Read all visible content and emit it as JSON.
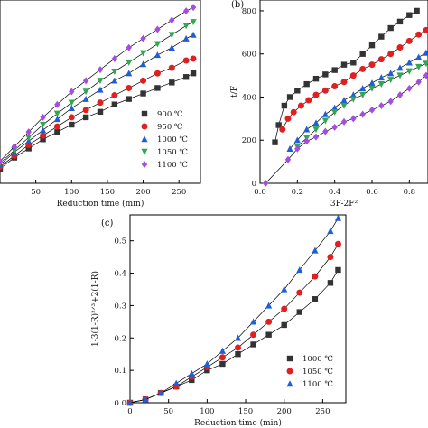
{
  "chart_data": [
    {
      "type": "scatter",
      "panel_label": "",
      "xlabel": "Reduction time (min)",
      "ylabel": "",
      "xlim": [
        0,
        280
      ],
      "ylim": [
        0,
        1
      ],
      "grid": false,
      "legend_position": "bottom-right",
      "x_ticks": [
        "50",
        "100",
        "150",
        "200",
        "250"
      ],
      "x_tick_values": [
        50,
        100,
        150,
        200,
        250
      ],
      "series": [
        {
          "name": "900 ℃",
          "marker": "square",
          "color": "#333333",
          "x": [
            0,
            20,
            40,
            60,
            80,
            100,
            120,
            140,
            160,
            180,
            200,
            220,
            240,
            260,
            270
          ],
          "y": [
            0.08,
            0.14,
            0.19,
            0.24,
            0.28,
            0.32,
            0.36,
            0.39,
            0.43,
            0.46,
            0.49,
            0.52,
            0.55,
            0.58,
            0.6
          ]
        },
        {
          "name": "950 ℃",
          "marker": "circle",
          "color": "#e02020",
          "x": [
            0,
            20,
            40,
            60,
            80,
            100,
            120,
            140,
            160,
            180,
            200,
            220,
            240,
            260,
            270
          ],
          "y": [
            0.09,
            0.15,
            0.21,
            0.26,
            0.31,
            0.36,
            0.4,
            0.44,
            0.48,
            0.52,
            0.56,
            0.6,
            0.63,
            0.67,
            0.68
          ]
        },
        {
          "name": "1000 ℃",
          "marker": "triangle-up",
          "color": "#1f5fd6",
          "x": [
            0,
            20,
            40,
            60,
            80,
            100,
            120,
            140,
            160,
            180,
            200,
            220,
            240,
            260,
            270
          ],
          "y": [
            0.1,
            0.17,
            0.23,
            0.29,
            0.35,
            0.41,
            0.46,
            0.51,
            0.56,
            0.6,
            0.65,
            0.7,
            0.74,
            0.79,
            0.81
          ]
        },
        {
          "name": "1050 ℃",
          "marker": "triangle-down",
          "color": "#2fa84f",
          "x": [
            0,
            20,
            40,
            60,
            80,
            100,
            120,
            140,
            160,
            180,
            200,
            220,
            240,
            260,
            270
          ],
          "y": [
            0.11,
            0.18,
            0.25,
            0.32,
            0.38,
            0.44,
            0.5,
            0.56,
            0.61,
            0.66,
            0.71,
            0.76,
            0.81,
            0.86,
            0.88
          ]
        },
        {
          "name": "1100 ℃",
          "marker": "diamond",
          "color": "#a64ce0",
          "x": [
            0,
            20,
            40,
            60,
            80,
            100,
            120,
            140,
            160,
            180,
            200,
            220,
            240,
            260,
            270
          ],
          "y": [
            0.12,
            0.2,
            0.28,
            0.36,
            0.43,
            0.5,
            0.56,
            0.62,
            0.68,
            0.74,
            0.79,
            0.84,
            0.89,
            0.94,
            0.96
          ]
        }
      ]
    },
    {
      "type": "scatter",
      "panel_label": "(b)",
      "xlabel": "3F-2F²",
      "ylabel": "t/F",
      "xlim": [
        0,
        0.9
      ],
      "ylim": [
        0,
        850
      ],
      "grid": false,
      "x_ticks": [
        "0.0",
        "0.2",
        "0.4",
        "0.6",
        "0.8"
      ],
      "x_tick_values": [
        0,
        0.2,
        0.4,
        0.6,
        0.8
      ],
      "y_ticks": [
        "0",
        "200",
        "400",
        "600",
        "800"
      ],
      "y_tick_values": [
        0,
        200,
        400,
        600,
        800
      ],
      "series": [
        {
          "marker": "square",
          "color": "#333333",
          "x": [
            0.08,
            0.1,
            0.13,
            0.16,
            0.2,
            0.25,
            0.3,
            0.35,
            0.4,
            0.45,
            0.5,
            0.55,
            0.6,
            0.65,
            0.7,
            0.75,
            0.8,
            0.84
          ],
          "y": [
            190,
            270,
            360,
            400,
            430,
            460,
            485,
            505,
            525,
            550,
            560,
            600,
            640,
            680,
            720,
            750,
            780,
            800
          ]
        },
        {
          "marker": "circle",
          "color": "#e02020",
          "x": [
            0.12,
            0.15,
            0.18,
            0.22,
            0.26,
            0.3,
            0.35,
            0.4,
            0.45,
            0.5,
            0.55,
            0.6,
            0.65,
            0.7,
            0.75,
            0.8,
            0.85,
            0.89
          ],
          "y": [
            250,
            300,
            330,
            360,
            385,
            410,
            430,
            450,
            470,
            500,
            530,
            550,
            575,
            600,
            630,
            660,
            690,
            710
          ]
        },
        {
          "marker": "triangle-up",
          "color": "#1f5fd6",
          "x": [
            0.16,
            0.2,
            0.25,
            0.3,
            0.35,
            0.4,
            0.45,
            0.5,
            0.55,
            0.6,
            0.65,
            0.7,
            0.75,
            0.8,
            0.85,
            0.89
          ],
          "y": [
            160,
            200,
            250,
            280,
            320,
            350,
            385,
            410,
            440,
            465,
            490,
            510,
            535,
            560,
            585,
            605
          ]
        },
        {
          "marker": "triangle-down",
          "color": "#2fa84f",
          "x": [
            0.2,
            0.25,
            0.3,
            0.35,
            0.4,
            0.45,
            0.5,
            0.55,
            0.6,
            0.65,
            0.7,
            0.75,
            0.8,
            0.85,
            0.89
          ],
          "y": [
            170,
            210,
            250,
            290,
            330,
            360,
            390,
            410,
            440,
            460,
            480,
            500,
            520,
            540,
            555
          ]
        },
        {
          "marker": "diamond",
          "color": "#a64ce0",
          "x": [
            0.03,
            0.15,
            0.2,
            0.25,
            0.3,
            0.35,
            0.4,
            0.45,
            0.5,
            0.55,
            0.6,
            0.65,
            0.7,
            0.75,
            0.8,
            0.85,
            0.89
          ],
          "y": [
            0,
            110,
            160,
            195,
            215,
            240,
            260,
            285,
            300,
            320,
            340,
            360,
            380,
            410,
            440,
            470,
            500
          ]
        }
      ]
    },
    {
      "type": "scatter",
      "panel_label": "(c)",
      "xlabel": "Reduction time (min)",
      "ylabel": "1-3(1-R)²ᐟ³+2(1-R)",
      "xlim": [
        0,
        280
      ],
      "ylim": [
        0,
        0.58
      ],
      "grid": false,
      "legend_position": "bottom-right",
      "x_ticks": [
        "0",
        "50",
        "100",
        "150",
        "200",
        "250"
      ],
      "x_tick_values": [
        0,
        50,
        100,
        150,
        200,
        250
      ],
      "y_ticks": [
        "0.0",
        "0.1",
        "0.2",
        "0.3",
        "0.4",
        "0.5"
      ],
      "y_tick_values": [
        0,
        0.1,
        0.2,
        0.3,
        0.4,
        0.5
      ],
      "series": [
        {
          "name": "1000 ℃",
          "marker": "square",
          "color": "#333333",
          "x": [
            0,
            20,
            40,
            60,
            80,
            100,
            120,
            140,
            160,
            180,
            200,
            220,
            240,
            260,
            270
          ],
          "y": [
            0.0,
            0.01,
            0.03,
            0.05,
            0.07,
            0.1,
            0.12,
            0.15,
            0.18,
            0.21,
            0.24,
            0.28,
            0.32,
            0.37,
            0.41
          ]
        },
        {
          "name": "1050 ℃",
          "marker": "circle",
          "color": "#e02020",
          "x": [
            0,
            20,
            40,
            60,
            80,
            100,
            120,
            140,
            160,
            180,
            200,
            220,
            240,
            260,
            270
          ],
          "y": [
            0.0,
            0.01,
            0.03,
            0.05,
            0.08,
            0.11,
            0.14,
            0.17,
            0.21,
            0.25,
            0.29,
            0.34,
            0.39,
            0.45,
            0.49
          ]
        },
        {
          "name": "1100 ℃",
          "marker": "triangle-up",
          "color": "#1f5fd6",
          "x": [
            0,
            20,
            40,
            60,
            80,
            100,
            120,
            140,
            160,
            180,
            200,
            220,
            240,
            260,
            270
          ],
          "y": [
            0.0,
            0.01,
            0.03,
            0.06,
            0.09,
            0.12,
            0.16,
            0.2,
            0.25,
            0.3,
            0.35,
            0.41,
            0.47,
            0.53,
            0.57
          ]
        }
      ]
    }
  ]
}
